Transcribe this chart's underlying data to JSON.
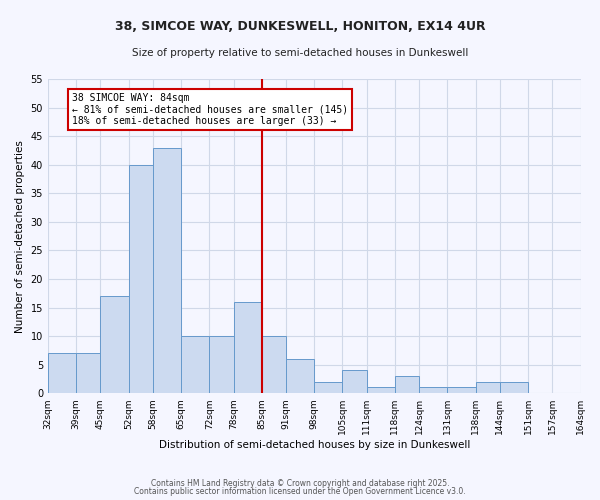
{
  "title_line1": "38, SIMCOE WAY, DUNKESWELL, HONITON, EX14 4UR",
  "title_line2": "Size of property relative to semi-detached houses in Dunkeswell",
  "xlabel": "Distribution of semi-detached houses by size in Dunkeswell",
  "ylabel": "Number of semi-detached properties",
  "bin_edges": [
    32,
    39,
    45,
    52,
    58,
    65,
    72,
    78,
    85,
    91,
    98,
    105,
    111,
    118,
    124,
    131,
    138,
    144,
    151,
    157,
    164
  ],
  "counts": [
    7,
    7,
    17,
    40,
    43,
    10,
    10,
    16,
    10,
    6,
    2,
    4,
    1,
    3,
    1,
    1,
    2,
    2,
    0,
    0
  ],
  "bar_facecolor": "#ccdaf0",
  "bar_edgecolor": "#6699cc",
  "grid_color": "#d0d8e8",
  "bg_color": "#f5f6ff",
  "vline_x": 85,
  "vline_color": "#cc0000",
  "annotation_title": "38 SIMCOE WAY: 84sqm",
  "annotation_line1": "← 81% of semi-detached houses are smaller (145)",
  "annotation_line2": "18% of semi-detached houses are larger (33) →",
  "annotation_box_edgecolor": "#cc0000",
  "annotation_box_facecolor": "#ffffff",
  "ylim_max": 55,
  "yticks": [
    0,
    5,
    10,
    15,
    20,
    25,
    30,
    35,
    40,
    45,
    50,
    55
  ],
  "footer_line1": "Contains HM Land Registry data © Crown copyright and database right 2025.",
  "footer_line2": "Contains public sector information licensed under the Open Government Licence v3.0."
}
